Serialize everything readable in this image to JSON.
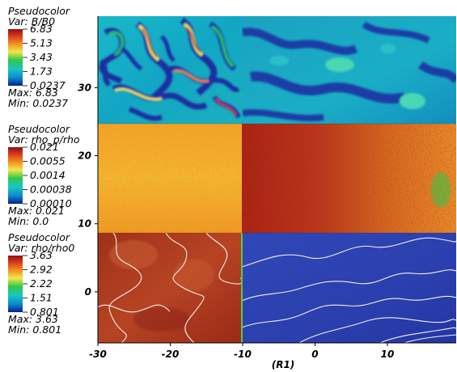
{
  "chart_data": {
    "type": "heatmap",
    "xlabel": "(R1)",
    "xlim": [
      -30,
      19.5
    ],
    "ylim": [
      -7.5,
      40.5
    ],
    "x_ticks": [
      -30,
      -20,
      -10,
      0,
      10
    ],
    "y_ticks": [
      0,
      10,
      20,
      30
    ],
    "divider_x": -10,
    "panels": [
      {
        "legend_title": "Pseudocolor",
        "variable": "Var: B/B0",
        "y_range": [
          23.5,
          40.5
        ],
        "scale": "linear",
        "colorbar_ticks": [
          "6.83",
          "5.13",
          "3.43",
          "1.73",
          "0.0237"
        ],
        "max_label": "Max: 6.83",
        "min_label": "Min: 0.0237",
        "max": 6.83,
        "min": 0.0237
      },
      {
        "legend_title": "Pseudocolor",
        "variable": "Var: rho_p/rho",
        "y_range": [
          7.5,
          23.5
        ],
        "scale": "log",
        "colorbar_ticks": [
          "0.021",
          "0.0055",
          "0.0014",
          "0.00038",
          "0.00010"
        ],
        "max_label": "Max: 0.021",
        "min_label": "Min: 0.0",
        "max": 0.021,
        "min": 0.0
      },
      {
        "legend_title": "Pseudocolor",
        "variable": "Var: rho/rho0",
        "y_range": [
          -7.5,
          7.5
        ],
        "scale": "linear",
        "colorbar_ticks": [
          "3.63",
          "2.92",
          "2.22",
          "1.51",
          "0.801"
        ],
        "max_label": "Max: 3.63",
        "min_label": "Min: 0.801",
        "max": 3.63,
        "min": 0.801
      }
    ],
    "colormap": [
      "#0a1f8f",
      "#0a8fd0",
      "#19c7c0",
      "#2ec84a",
      "#f2e64a",
      "#f08a1e",
      "#d9381e",
      "#8e1010"
    ]
  }
}
